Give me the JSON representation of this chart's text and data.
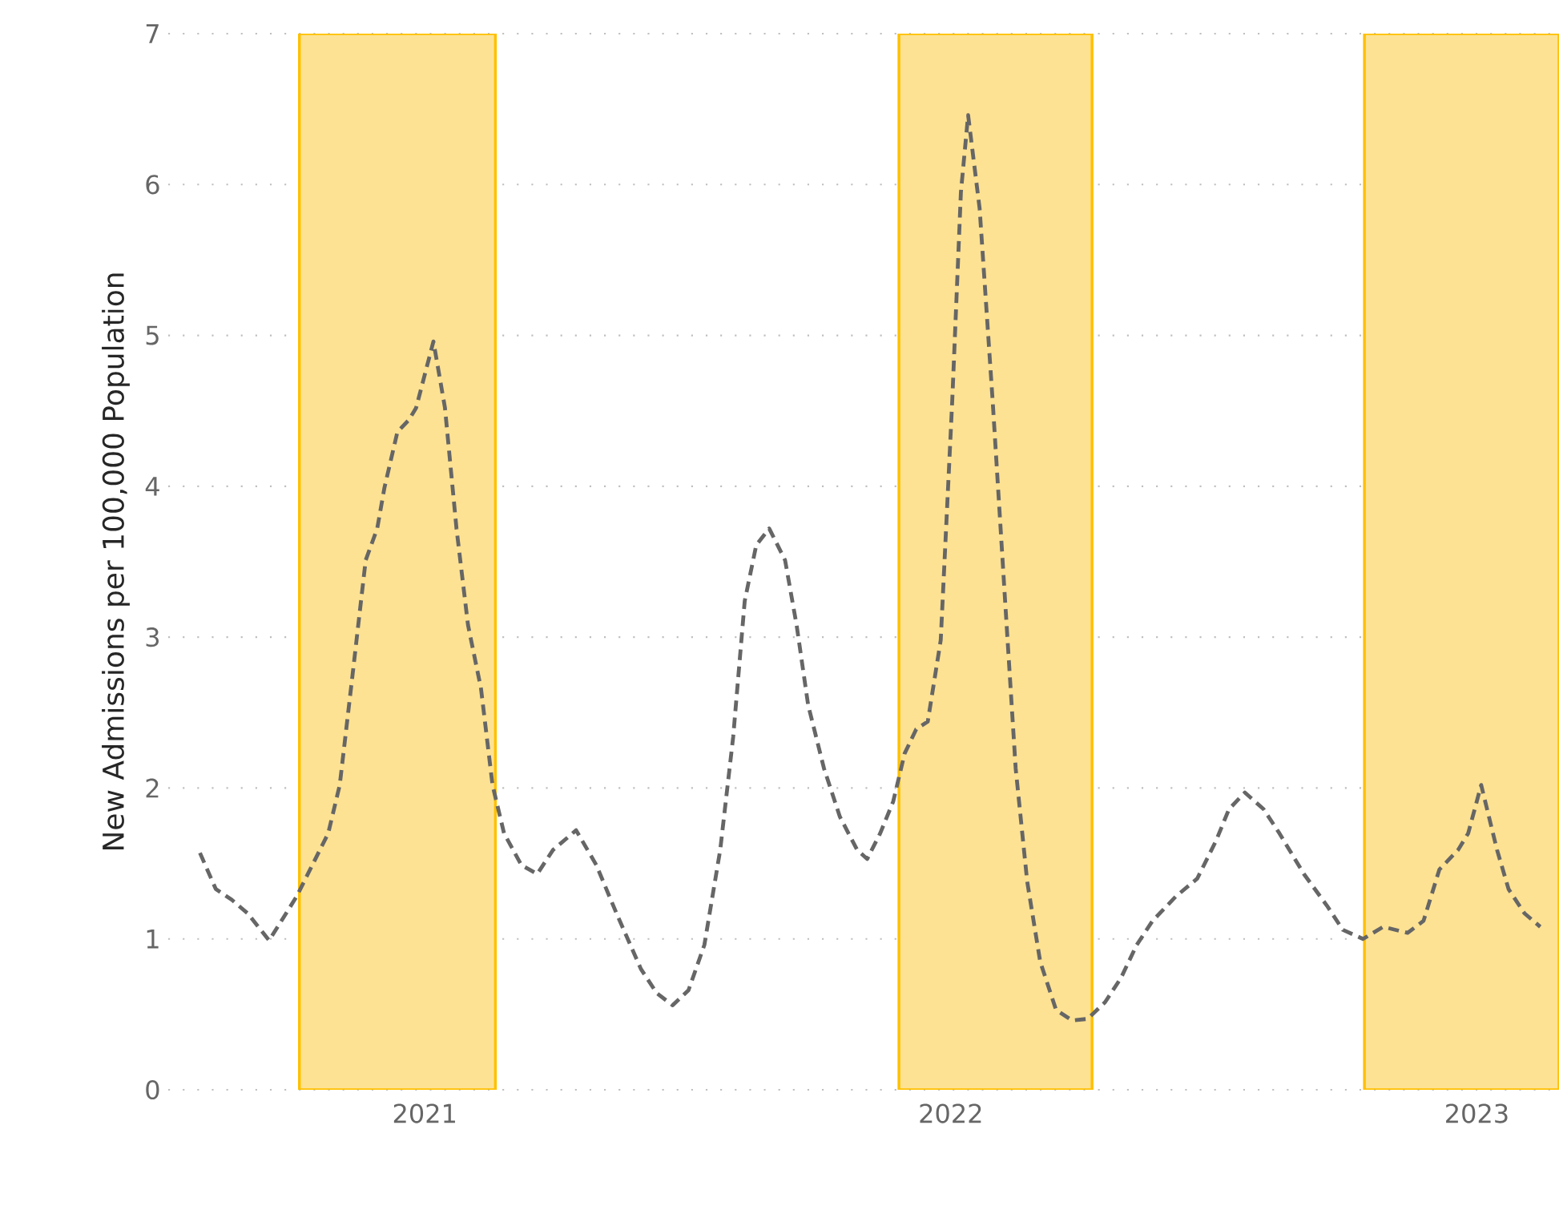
{
  "chart_data": {
    "type": "line",
    "ylabel": "New Admissions per 100,000 Population",
    "x": [
      "2020-07-29",
      "2020-08-09",
      "2020-08-20",
      "2020-08-31",
      "2020-09-15",
      "2020-10-04",
      "2020-10-15",
      "2020-10-26",
      "2020-11-03",
      "2020-11-12",
      "2020-11-21",
      "2020-11-29",
      "2020-12-04",
      "2020-12-13",
      "2020-12-21",
      "2020-12-26",
      "2021-01-07",
      "2021-01-15",
      "2021-01-23",
      "2021-01-31",
      "2021-02-09",
      "2021-02-17",
      "2021-02-25",
      "2021-03-09",
      "2021-03-20",
      "2021-03-31",
      "2021-04-16",
      "2021-04-30",
      "2021-05-14",
      "2021-05-31",
      "2021-06-11",
      "2021-06-22",
      "2021-07-03",
      "2021-07-14",
      "2021-07-25",
      "2021-08-03",
      "2021-08-11",
      "2021-08-19",
      "2021-08-28",
      "2021-09-08",
      "2021-09-16",
      "2021-09-24",
      "2021-10-05",
      "2021-10-16",
      "2021-10-28",
      "2021-11-04",
      "2021-11-13",
      "2021-11-22",
      "2021-11-30",
      "2021-12-08",
      "2021-12-16",
      "2021-12-25",
      "2022-01-02",
      "2022-01-08",
      "2022-01-13",
      "2022-01-21",
      "2022-01-30",
      "2022-02-08",
      "2022-02-15",
      "2022-02-23",
      "2022-03-04",
      "2022-03-15",
      "2022-03-26",
      "2022-04-06",
      "2022-04-18",
      "2022-04-29",
      "2022-05-10",
      "2022-05-21",
      "2022-06-06",
      "2022-06-21",
      "2022-07-04",
      "2022-07-13",
      "2022-07-24",
      "2022-08-06",
      "2022-08-17",
      "2022-09-03",
      "2022-09-19",
      "2022-09-30",
      "2022-10-14",
      "2022-10-28",
      "2022-11-14",
      "2022-11-25",
      "2022-12-06",
      "2022-12-19",
      "2022-12-26",
      "2023-01-04",
      "2023-01-15",
      "2023-01-23",
      "2023-02-03",
      "2023-02-14"
    ],
    "series": [
      {
        "color": "#666666",
        "line_style": "dashed",
        "values": [
          1.57,
          1.33,
          1.26,
          1.17,
          0.99,
          1.28,
          1.49,
          1.7,
          2.02,
          2.76,
          3.51,
          3.72,
          3.99,
          4.36,
          4.44,
          4.52,
          4.96,
          4.52,
          3.72,
          3.08,
          2.66,
          2.02,
          1.7,
          1.49,
          1.43,
          1.59,
          1.72,
          1.49,
          1.17,
          0.8,
          0.64,
          0.56,
          0.66,
          0.96,
          1.59,
          2.34,
          3.24,
          3.61,
          3.72,
          3.51,
          3.08,
          2.55,
          2.13,
          1.81,
          1.59,
          1.53,
          1.7,
          1.91,
          2.23,
          2.39,
          2.44,
          2.98,
          4.57,
          5.95,
          6.46,
          5.84,
          4.57,
          3.19,
          2.13,
          1.38,
          0.85,
          0.53,
          0.46,
          0.47,
          0.58,
          0.74,
          0.96,
          1.12,
          1.28,
          1.4,
          1.65,
          1.86,
          1.97,
          1.86,
          1.7,
          1.43,
          1.22,
          1.06,
          1.0,
          1.08,
          1.04,
          1.12,
          1.46,
          1.59,
          1.7,
          2.02,
          1.59,
          1.33,
          1.17,
          1.08
        ]
      }
    ],
    "xlim": [
      "2020-07-07",
      "2023-02-27"
    ],
    "ylim": [
      0,
      7
    ],
    "xticks": [
      {
        "value": "2021-01-01",
        "label": "2021"
      },
      {
        "value": "2022-01-01",
        "label": "2022"
      },
      {
        "value": "2023-01-01",
        "label": "2023"
      }
    ],
    "yticks": [
      0,
      1,
      2,
      3,
      4,
      5,
      6,
      7
    ],
    "grid": "y",
    "bands": [
      {
        "axis": "x",
        "from": "2020-10-06",
        "to": "2021-02-19",
        "color": "#fde293"
      },
      {
        "axis": "x",
        "from": "2021-11-26",
        "to": "2022-04-09",
        "color": "#fde293"
      },
      {
        "axis": "x",
        "from": "2022-10-15",
        "to": "2023-02-27",
        "color": "#fde293"
      }
    ]
  }
}
